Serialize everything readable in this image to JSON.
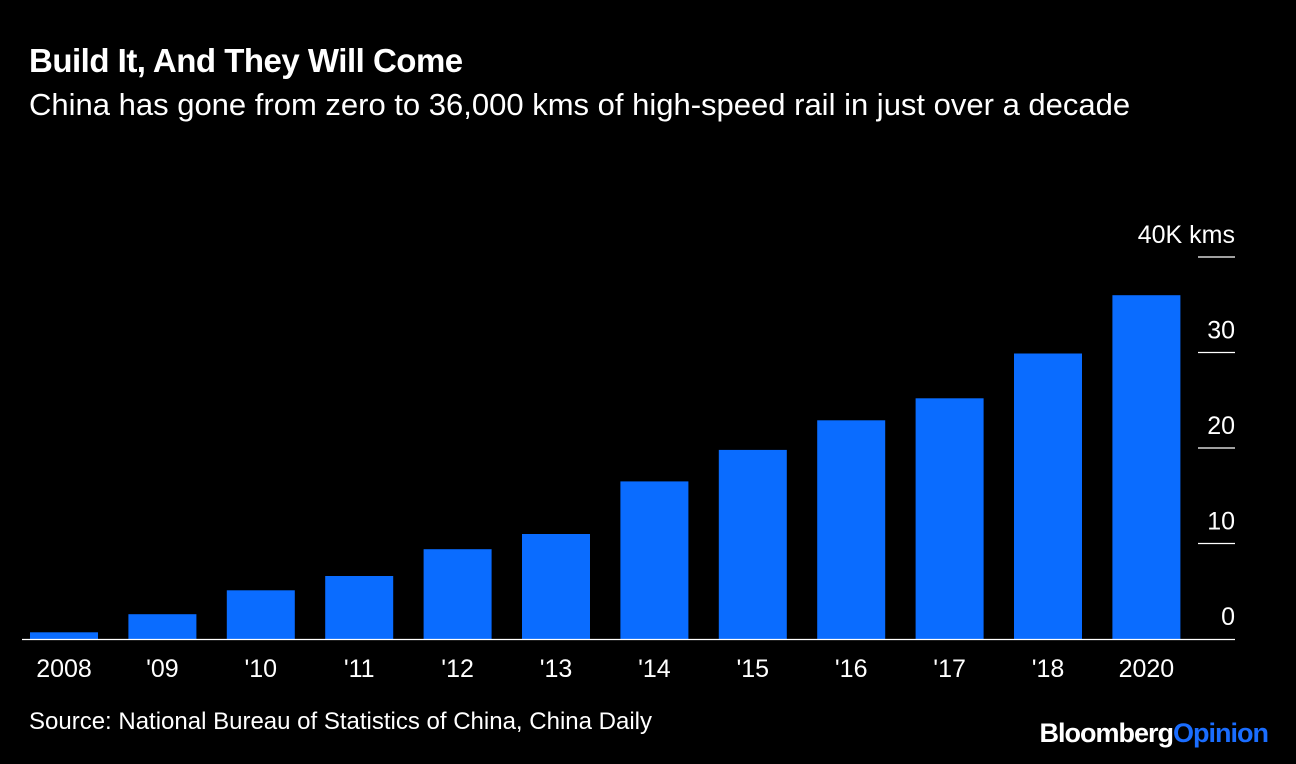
{
  "header": {
    "title": "Build It, And They Will Come",
    "subtitle": "China has gone from zero to 36,000 kms of high-speed rail in just over a decade"
  },
  "footer": {
    "source": "Source: National Bureau of Statistics of China, China Daily",
    "brand_primary": "Bloomberg",
    "brand_secondary": "Opinion"
  },
  "colors": {
    "background": "#000000",
    "bar": "#0a6cff",
    "text": "#ffffff",
    "gridline": "#ffffff",
    "brand_accent": "#1a6dff"
  },
  "chart_data": {
    "type": "bar",
    "categories": [
      "2008",
      "'09",
      "'10",
      "'11",
      "'12",
      "'13",
      "'14",
      "'15",
      "'16",
      "'17",
      "'18",
      "2020"
    ],
    "values": [
      0.7,
      2.6,
      5.1,
      6.6,
      9.4,
      11.0,
      16.5,
      19.8,
      22.9,
      25.2,
      29.9,
      36.0
    ],
    "ylim": [
      0,
      40
    ],
    "yticks": [
      0,
      10,
      20,
      30,
      40
    ],
    "ytick_labels": [
      "0",
      "10",
      "20",
      "30",
      "40K kms"
    ],
    "y_axis_position": "right",
    "grid": false,
    "xlabel": "",
    "ylabel": ""
  }
}
